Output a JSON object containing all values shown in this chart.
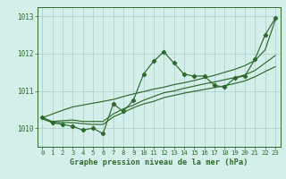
{
  "hours": [
    0,
    1,
    2,
    3,
    4,
    5,
    6,
    7,
    8,
    9,
    10,
    11,
    12,
    13,
    14,
    15,
    16,
    17,
    18,
    19,
    20,
    21,
    22,
    23
  ],
  "series_main": [
    1010.3,
    1010.15,
    1010.1,
    1010.05,
    1009.95,
    1010.0,
    1009.85,
    1010.65,
    1010.45,
    1010.75,
    1011.45,
    1011.8,
    1012.05,
    1011.75,
    1011.45,
    1011.4,
    1011.4,
    1011.15,
    1011.1,
    1011.35,
    1011.4,
    1011.85,
    1012.5,
    1012.95
  ],
  "series_smooth1": [
    1010.25,
    1010.15,
    1010.15,
    1010.15,
    1010.12,
    1010.1,
    1010.1,
    1010.3,
    1010.42,
    1010.55,
    1010.65,
    1010.72,
    1010.82,
    1010.88,
    1010.94,
    1010.99,
    1011.04,
    1011.09,
    1011.14,
    1011.2,
    1011.27,
    1011.38,
    1011.52,
    1011.65
  ],
  "series_smooth2": [
    1010.28,
    1010.18,
    1010.2,
    1010.22,
    1010.18,
    1010.18,
    1010.18,
    1010.38,
    1010.52,
    1010.62,
    1010.75,
    1010.85,
    1010.95,
    1011.0,
    1011.07,
    1011.13,
    1011.19,
    1011.24,
    1011.3,
    1011.36,
    1011.43,
    1011.55,
    1011.75,
    1011.95
  ],
  "series_linear": [
    1010.28,
    1010.38,
    1010.48,
    1010.57,
    1010.62,
    1010.67,
    1010.72,
    1010.77,
    1010.85,
    1010.92,
    1010.98,
    1011.05,
    1011.1,
    1011.17,
    1011.22,
    1011.28,
    1011.35,
    1011.42,
    1011.5,
    1011.58,
    1011.68,
    1011.82,
    1012.1,
    1012.9
  ],
  "ylim_min": 1009.5,
  "ylim_max": 1013.25,
  "yticks": [
    1010,
    1011,
    1012,
    1013
  ],
  "xlabel": "Graphe pression niveau de la mer (hPa)",
  "line_color": "#2d6a2d",
  "bg_color": "#d4eeea",
  "grid_color": "#a8ccc8",
  "marker": "D",
  "marker_size": 2.2,
  "linewidth": 0.85
}
